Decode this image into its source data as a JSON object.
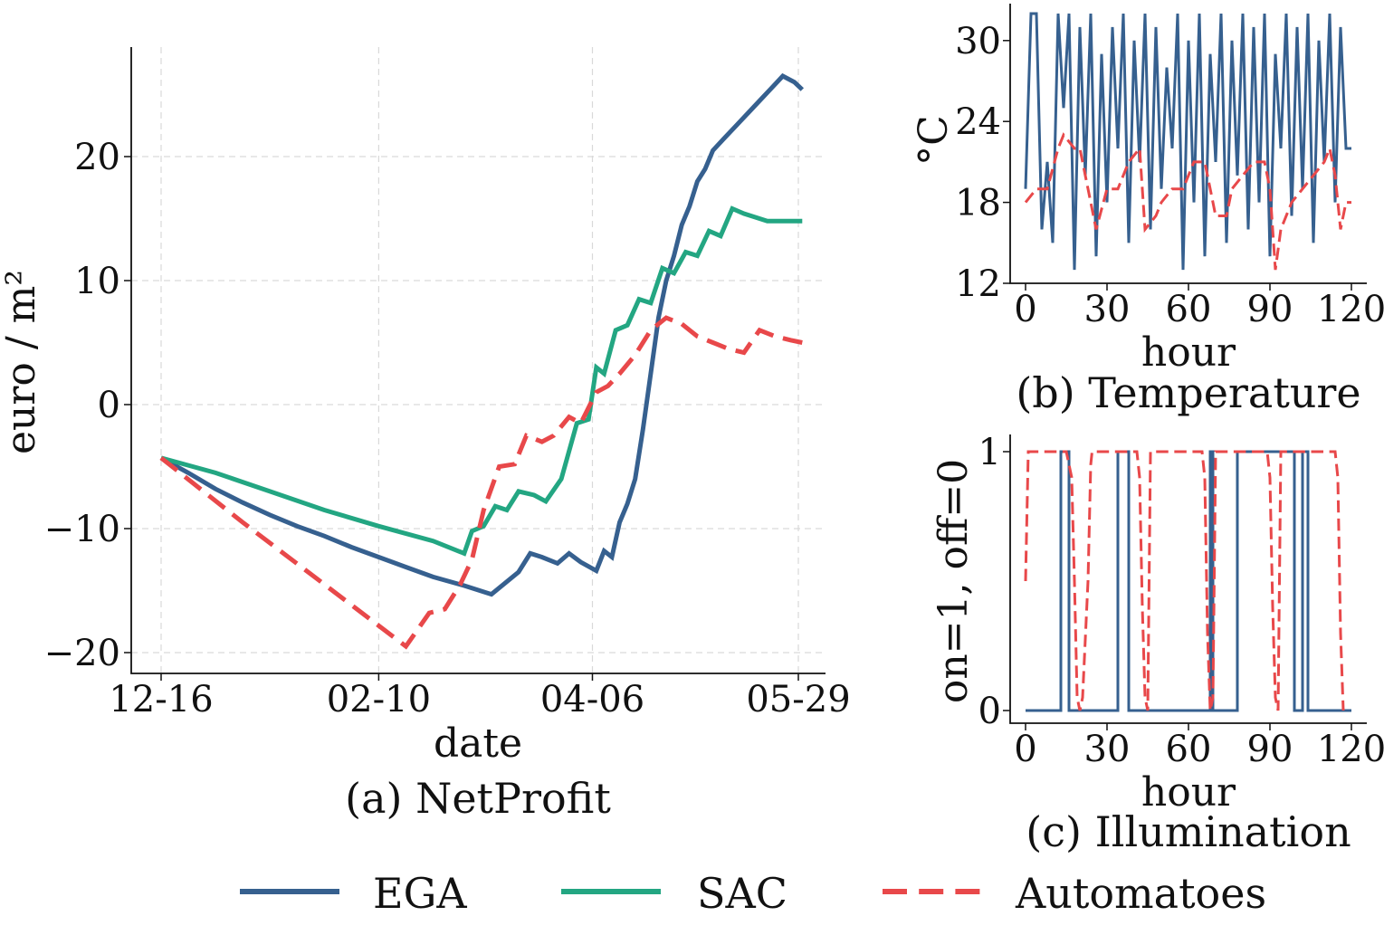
{
  "colors": {
    "EGA": "#36608f",
    "SAC": "#23a682",
    "Automatoes": "#e8484a"
  },
  "legend": [
    {
      "name": "EGA",
      "style": "solid"
    },
    {
      "name": "SAC",
      "style": "solid"
    },
    {
      "name": "Automatoes",
      "style": "dashed"
    }
  ],
  "chart_data": [
    {
      "id": "a",
      "type": "line",
      "caption": "(a) NetProfit",
      "xlabel": "date",
      "ylabel": "euro / m²",
      "x_tick_labels": [
        "12-16",
        "02-10",
        "04-06",
        "05-29"
      ],
      "x_tick_days": [
        0,
        56,
        111,
        164
      ],
      "ylim": [
        -22,
        29
      ],
      "y_ticks": [
        -20,
        -10,
        0,
        10,
        20
      ],
      "y_tick_labels": [
        "−20",
        "−10",
        "0",
        "10",
        "20"
      ],
      "grid": true,
      "series": [
        {
          "name": "EGA",
          "style": "solid",
          "x": [
            "12-16",
            "12-23",
            "12-30",
            "01-06",
            "01-13",
            "01-20",
            "01-27",
            "02-03",
            "02-10",
            "02-17",
            "02-24",
            "03-03",
            "03-10",
            "03-17",
            "03-20",
            "03-23",
            "03-27",
            "03-30",
            "04-02",
            "04-06",
            "04-08",
            "04-10",
            "04-12",
            "04-14",
            "04-16",
            "04-18",
            "04-20",
            "04-22",
            "04-24",
            "04-26",
            "04-28",
            "04-30",
            "05-02",
            "05-04",
            "05-06",
            "05-09",
            "05-12",
            "05-15",
            "05-18",
            "05-21",
            "05-24",
            "05-27",
            "05-29"
          ],
          "y": [
            -4.3,
            -5.5,
            -6.8,
            -7.9,
            -8.9,
            -9.8,
            -10.6,
            -11.5,
            -12.3,
            -13.1,
            -13.9,
            -14.6,
            -15.3,
            -13.5,
            -12.0,
            -12.3,
            -12.8,
            -12.0,
            -12.7,
            -13.4,
            -11.8,
            -12.3,
            -9.5,
            -8.0,
            -6.0,
            -2.0,
            2.5,
            7.0,
            10.0,
            12.0,
            14.5,
            16.0,
            18.0,
            19.0,
            20.5,
            21.5,
            22.5,
            23.5,
            24.5,
            25.5,
            26.5,
            26.0,
            25.4
          ]
        },
        {
          "name": "SAC",
          "style": "solid",
          "x": [
            "12-16",
            "12-30",
            "01-13",
            "01-27",
            "02-10",
            "02-24",
            "03-03",
            "03-05",
            "03-08",
            "03-11",
            "03-14",
            "03-17",
            "03-21",
            "03-24",
            "03-28",
            "04-01",
            "04-04",
            "04-06",
            "04-08",
            "04-11",
            "04-14",
            "04-17",
            "04-20",
            "04-23",
            "04-26",
            "04-29",
            "05-02",
            "05-05",
            "05-08",
            "05-11",
            "05-14",
            "05-17",
            "05-20",
            "05-23",
            "05-26",
            "05-29"
          ],
          "y": [
            -4.3,
            -5.5,
            -7.0,
            -8.5,
            -9.8,
            -11.0,
            -12.0,
            -10.2,
            -9.8,
            -8.2,
            -8.5,
            -7.0,
            -7.3,
            -7.8,
            -6.0,
            -1.5,
            -1.2,
            3.0,
            2.5,
            6.0,
            6.4,
            8.5,
            8.2,
            11.0,
            10.6,
            12.3,
            12.0,
            14.0,
            13.6,
            15.8,
            15.4,
            15.1,
            14.8,
            14.8,
            14.8,
            14.8
          ]
        },
        {
          "name": "Automatoes",
          "style": "dashed",
          "x": [
            "12-16",
            "01-06",
            "01-27",
            "02-17",
            "02-23",
            "02-27",
            "03-02",
            "03-05",
            "03-08",
            "03-12",
            "03-16",
            "03-19",
            "03-23",
            "03-26",
            "03-30",
            "04-02",
            "04-06",
            "04-09",
            "04-12",
            "04-16",
            "04-20",
            "04-24",
            "04-28",
            "05-02",
            "05-06",
            "05-10",
            "05-14",
            "05-18",
            "05-22",
            "05-26",
            "05-29"
          ],
          "y": [
            -4.3,
            -9.5,
            -14.5,
            -19.5,
            -16.8,
            -16.5,
            -14.5,
            -12.5,
            -8.5,
            -5.0,
            -4.8,
            -2.5,
            -3.0,
            -2.5,
            -1.0,
            -1.5,
            1.0,
            1.5,
            2.5,
            4.0,
            6.0,
            7.0,
            6.5,
            5.5,
            5.0,
            4.5,
            4.2,
            6.0,
            5.5,
            5.2,
            5.0
          ]
        }
      ]
    },
    {
      "id": "b",
      "type": "line",
      "caption": "(b) Temperature",
      "xlabel": "hour",
      "ylabel": "°C",
      "ylim": [
        12,
        32
      ],
      "y_ticks": [
        12,
        18,
        24,
        30
      ],
      "x_ticks": [
        0,
        30,
        60,
        90,
        120
      ],
      "series": [
        {
          "name": "EGA",
          "style": "solid",
          "x": [
            0,
            2,
            4,
            6,
            8,
            10,
            12,
            14,
            16,
            18,
            20,
            22,
            24,
            26,
            28,
            30,
            32,
            34,
            36,
            38,
            40,
            42,
            44,
            46,
            48,
            50,
            52,
            54,
            56,
            58,
            60,
            62,
            64,
            66,
            68,
            70,
            72,
            74,
            76,
            78,
            80,
            82,
            84,
            86,
            88,
            90,
            92,
            94,
            96,
            98,
            100,
            102,
            104,
            106,
            108,
            110,
            112,
            114,
            116,
            118,
            120
          ],
          "y": [
            19,
            32,
            32,
            16,
            21,
            15,
            32,
            25,
            32,
            13,
            31,
            20,
            32,
            14,
            29,
            18,
            31,
            22,
            32,
            15,
            30,
            21,
            32,
            16,
            31,
            19,
            28,
            22,
            32,
            13,
            30,
            18,
            32,
            14,
            29,
            21,
            32,
            15,
            30,
            20,
            32,
            16,
            31,
            18,
            32,
            14,
            29,
            22,
            32,
            17,
            31,
            19,
            32,
            15,
            30,
            21,
            32,
            18,
            31,
            22,
            22
          ]
        },
        {
          "name": "Automatoes",
          "style": "dashed",
          "x": [
            0,
            4,
            8,
            12,
            14,
            18,
            20,
            24,
            26,
            30,
            34,
            38,
            42,
            44,
            48,
            50,
            54,
            58,
            62,
            66,
            70,
            74,
            76,
            80,
            84,
            86,
            88,
            90,
            92,
            94,
            98,
            102,
            106,
            110,
            112,
            114,
            116,
            118,
            120
          ],
          "y": [
            18,
            19,
            19,
            22,
            23,
            22,
            22,
            18,
            16,
            19,
            19,
            21,
            22,
            16,
            17,
            18,
            19,
            19,
            21,
            21,
            17,
            17,
            19,
            20,
            21,
            21,
            21,
            19,
            13,
            16,
            18,
            19,
            20,
            21,
            22,
            20,
            16,
            18,
            18
          ]
        }
      ]
    },
    {
      "id": "c",
      "type": "line",
      "caption": "(c) Illumination",
      "xlabel": "hour",
      "ylabel": "on=1, off=0",
      "ylim": [
        -0.05,
        1.05
      ],
      "y_ticks": [
        0,
        1
      ],
      "x_ticks": [
        0,
        30,
        60,
        90,
        120
      ],
      "series": [
        {
          "name": "EGA",
          "style": "solid",
          "x": [
            0,
            13,
            13,
            16,
            16,
            34,
            34,
            38,
            38,
            68,
            68,
            69,
            69,
            78,
            78,
            99,
            99,
            102,
            102,
            104,
            104,
            120
          ],
          "y": [
            0,
            0,
            1,
            1,
            0,
            0,
            1,
            1,
            0,
            0,
            1,
            1,
            0,
            0,
            1,
            1,
            0,
            0,
            1,
            1,
            0,
            0
          ]
        },
        {
          "name": "Automatoes",
          "style": "dashed",
          "x": [
            0,
            1,
            2,
            15,
            17,
            18,
            19,
            20,
            21,
            23,
            24,
            24.5,
            25,
            41,
            42,
            43,
            44,
            45,
            46,
            65,
            66,
            67,
            68,
            69,
            70,
            89,
            90,
            91,
            92,
            93,
            94,
            114,
            115,
            116,
            117
          ],
          "y": [
            0.5,
            1,
            1,
            1,
            0.9,
            0.5,
            0.05,
            0,
            0.05,
            0.5,
            0.95,
            1,
            1,
            1,
            0.9,
            0.4,
            0.05,
            0,
            1,
            1,
            0.9,
            0.3,
            0,
            0.05,
            1,
            1,
            0.9,
            0.4,
            0.05,
            0,
            1,
            1,
            0.9,
            0.3,
            0
          ]
        }
      ]
    }
  ]
}
